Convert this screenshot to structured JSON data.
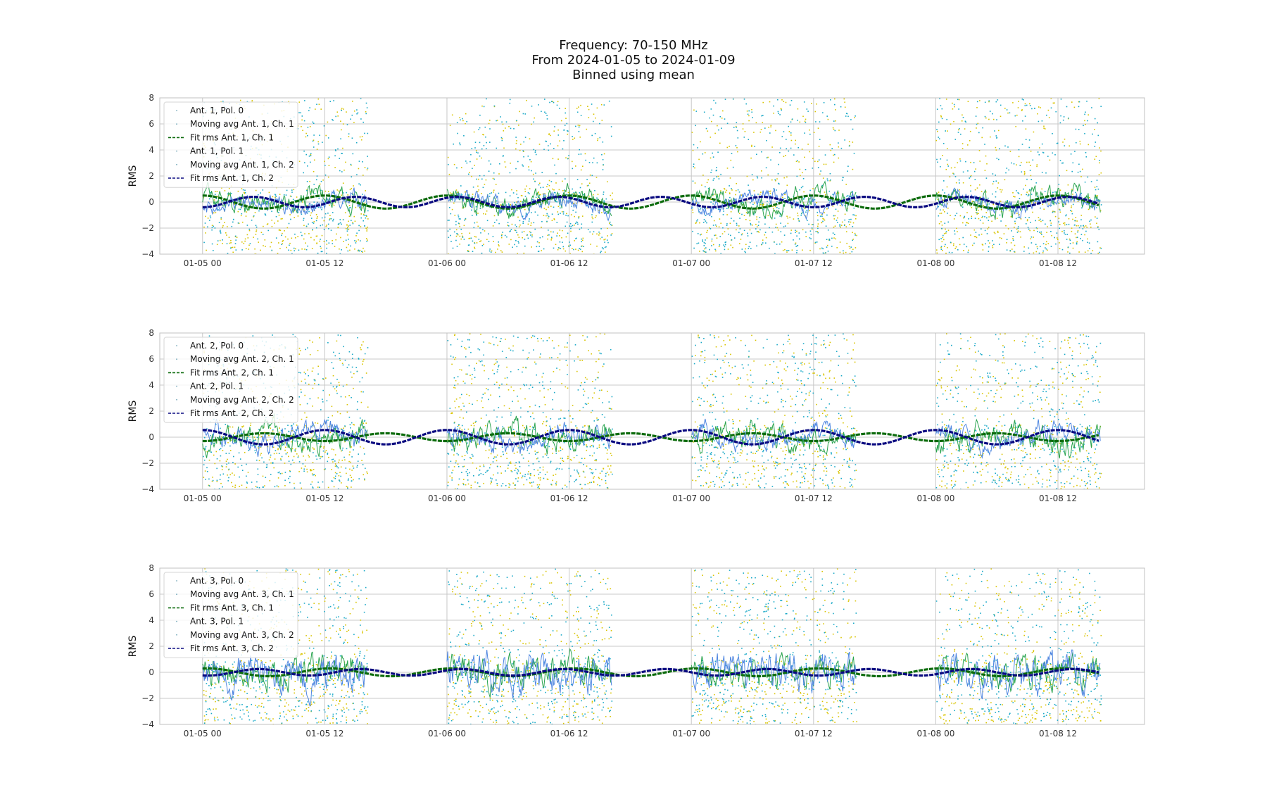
{
  "figure": {
    "title_lines": [
      "Frequency: 70-150 MHz",
      "From 2024-01-05 to 2024-01-09",
      "Binned using mean"
    ],
    "colors": {
      "pol0_scatter": "#d9c400",
      "pol1_scatter": "#19a9c7",
      "moving_avg_ch1": "#2aa44f",
      "moving_avg_ch2": "#4f86e0",
      "fit_ch1": "#0c6b0c",
      "fit_ch2": "#0a0a80",
      "grid": "#c8c8c8",
      "axes_frame": "#c0c0c0"
    }
  },
  "chart_data": [
    {
      "type": "scatter",
      "ylabel": "RMS",
      "ylim": [
        -4,
        8
      ],
      "yticks": [
        "8",
        "6",
        "4",
        "2",
        "0",
        "−2",
        "−4"
      ],
      "yticks_values": [
        8,
        6,
        4,
        2,
        0,
        -2,
        -4
      ],
      "xlim_hours": [
        -4.2,
        92.5
      ],
      "xticks": [
        {
          "label": "01-05 00",
          "hour": 0
        },
        {
          "label": "01-05 12",
          "hour": 12
        },
        {
          "label": "01-06 00",
          "hour": 24
        },
        {
          "label": "01-06 12",
          "hour": 36
        },
        {
          "label": "01-07 00",
          "hour": 48
        },
        {
          "label": "01-07 12",
          "hour": 60
        },
        {
          "label": "01-08 00",
          "hour": 72
        },
        {
          "label": "01-08 12",
          "hour": 84
        }
      ],
      "grid": true,
      "legend_position": "top-left",
      "legend": [
        {
          "label": "Ant. 1, Pol. 0",
          "style": "dots"
        },
        {
          "label": "Moving avg Ant. 1, Ch. 1",
          "style": "dots"
        },
        {
          "label": "Fit rms Ant. 1, Ch. 1",
          "style": "dashed-green"
        },
        {
          "label": "Ant. 1, Pol. 1",
          "style": "dots"
        },
        {
          "label": "Moving avg Ant. 1, Ch. 2",
          "style": "dots"
        },
        {
          "label": "Fit rms Ant. 1, Ch. 2",
          "style": "dashed-navy"
        }
      ],
      "observing_windows_hours": [
        [
          0,
          16.2
        ],
        [
          24,
          40.2
        ],
        [
          48,
          64.2
        ],
        [
          72,
          88.2
        ]
      ],
      "fit_ch1": {
        "amplitude": 0.5,
        "period_hours": 12,
        "phase_hours": 9.0
      },
      "fit_ch2": {
        "amplitude": 0.4,
        "period_hours": 10,
        "phase_hours": 2.5
      },
      "moving_avg_noise": {
        "ch1": 0.5,
        "ch2": 0.4
      }
    },
    {
      "type": "scatter",
      "ylabel": "RMS",
      "ylim": [
        -4,
        8
      ],
      "yticks": [
        "8",
        "6",
        "4",
        "2",
        "0",
        "−2",
        "−4"
      ],
      "yticks_values": [
        8,
        6,
        4,
        2,
        0,
        -2,
        -4
      ],
      "xlim_hours": [
        -4.2,
        92.5
      ],
      "xticks": [
        {
          "label": "01-05 00",
          "hour": 0
        },
        {
          "label": "01-05 12",
          "hour": 12
        },
        {
          "label": "01-06 00",
          "hour": 24
        },
        {
          "label": "01-06 12",
          "hour": 36
        },
        {
          "label": "01-07 00",
          "hour": 48
        },
        {
          "label": "01-07 12",
          "hour": 60
        },
        {
          "label": "01-08 00",
          "hour": 72
        },
        {
          "label": "01-08 12",
          "hour": 84
        }
      ],
      "grid": true,
      "legend_position": "top-left",
      "legend": [
        {
          "label": "Ant. 2, Pol. 0",
          "style": "dots"
        },
        {
          "label": "Moving avg Ant. 2, Ch. 1",
          "style": "dots"
        },
        {
          "label": "Fit rms Ant. 2, Ch. 1",
          "style": "dashed-green"
        },
        {
          "label": "Ant. 2, Pol. 1",
          "style": "dots"
        },
        {
          "label": "Moving avg Ant. 2, Ch. 2",
          "style": "dots"
        },
        {
          "label": "Fit rms Ant. 2, Ch. 2",
          "style": "dashed-navy"
        }
      ],
      "observing_windows_hours": [
        [
          0,
          16.2
        ],
        [
          24,
          40.2
        ],
        [
          48,
          64.2
        ],
        [
          72,
          88.2
        ]
      ],
      "fit_ch1": {
        "amplitude": 0.3,
        "period_hours": 12,
        "phase_hours": 3.0
      },
      "fit_ch2": {
        "amplitude": 0.55,
        "period_hours": 12,
        "phase_hours": 9.0
      },
      "moving_avg_noise": {
        "ch1": 0.6,
        "ch2": 0.5
      }
    },
    {
      "type": "scatter",
      "ylabel": "RMS",
      "ylim": [
        -4,
        8
      ],
      "yticks": [
        "8",
        "6",
        "4",
        "2",
        "0",
        "−2",
        "−4"
      ],
      "yticks_values": [
        8,
        6,
        4,
        2,
        0,
        -2,
        -4
      ],
      "xlim_hours": [
        -4.2,
        92.5
      ],
      "xticks": [
        {
          "label": "01-05 00",
          "hour": 0
        },
        {
          "label": "01-05 12",
          "hour": 12
        },
        {
          "label": "01-06 00",
          "hour": 24
        },
        {
          "label": "01-06 12",
          "hour": 36
        },
        {
          "label": "01-07 00",
          "hour": 48
        },
        {
          "label": "01-07 12",
          "hour": 60
        },
        {
          "label": "01-08 00",
          "hour": 72
        },
        {
          "label": "01-08 12",
          "hour": 84
        }
      ],
      "grid": true,
      "legend_position": "top-left",
      "legend": [
        {
          "label": "Ant. 3, Pol. 0",
          "style": "dots"
        },
        {
          "label": "Moving avg Ant. 3, Ch. 1",
          "style": "dots"
        },
        {
          "label": "Fit rms Ant. 3, Ch. 1",
          "style": "dashed-green"
        },
        {
          "label": "Ant. 3, Pol. 1",
          "style": "dots"
        },
        {
          "label": "Moving avg Ant. 3, Ch. 2",
          "style": "dots"
        },
        {
          "label": "Fit rms Ant. 3, Ch. 2",
          "style": "dashed-navy"
        }
      ],
      "observing_windows_hours": [
        [
          0,
          16.2
        ],
        [
          24,
          40.2
        ],
        [
          48,
          64.2
        ],
        [
          72,
          88.2
        ]
      ],
      "fit_ch1": {
        "amplitude": 0.3,
        "period_hours": 12,
        "phase_hours": 9.5
      },
      "fit_ch2": {
        "amplitude": 0.25,
        "period_hours": 10,
        "phase_hours": 3.0
      },
      "moving_avg_noise": {
        "ch1": 0.7,
        "ch2": 0.9
      }
    }
  ]
}
